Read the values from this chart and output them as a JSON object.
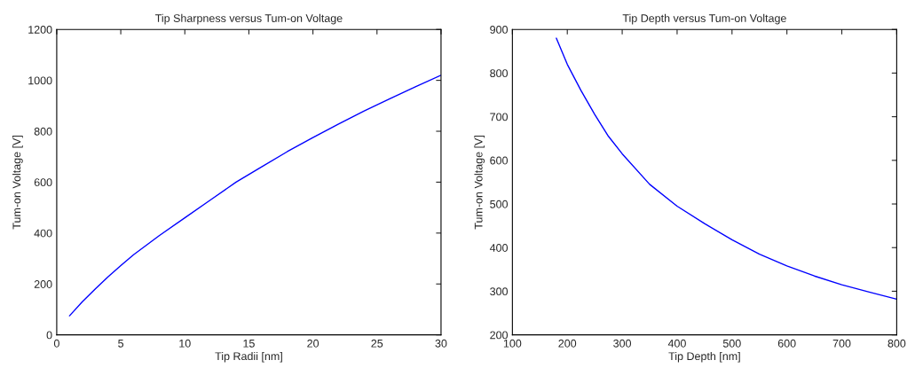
{
  "chart_data": [
    {
      "type": "line",
      "title": "Tip Sharpness versus Tum-on Voltage",
      "xlabel": "Tip Radii [nm]",
      "ylabel": "Tum-on Voltage [V]",
      "x": [
        1,
        2,
        3,
        4,
        5,
        6,
        8,
        10,
        12,
        14,
        16,
        18,
        20,
        22,
        24,
        26,
        28,
        30
      ],
      "series": [
        {
          "color": "#0000ff",
          "values": [
            75,
            130,
            180,
            228,
            272,
            315,
            390,
            460,
            530,
            600,
            660,
            720,
            775,
            828,
            880,
            928,
            975,
            1020
          ]
        }
      ],
      "xlim": [
        0,
        30
      ],
      "xticks": [
        0,
        5,
        10,
        15,
        20,
        25,
        30
      ],
      "ylim": [
        0,
        1200
      ],
      "yticks": [
        0,
        200,
        400,
        600,
        800,
        1000,
        1200
      ],
      "grid": false
    },
    {
      "type": "line",
      "title": "Tip Depth versus Tum-on Voltage",
      "xlabel": "Tip Depth [nm]",
      "ylabel": "Tum-on Voltage [V]",
      "x": [
        180,
        200,
        225,
        250,
        275,
        300,
        350,
        400,
        450,
        500,
        550,
        600,
        650,
        700,
        750,
        800
      ],
      "series": [
        {
          "color": "#0000ff",
          "values": [
            880,
            820,
            760,
            705,
            655,
            615,
            545,
            495,
            455,
            418,
            385,
            358,
            335,
            315,
            298,
            282
          ]
        }
      ],
      "xlim": [
        100,
        800
      ],
      "xticks": [
        100,
        200,
        300,
        400,
        500,
        600,
        700,
        800
      ],
      "ylim": [
        200,
        900
      ],
      "yticks": [
        200,
        300,
        400,
        500,
        600,
        700,
        800,
        900
      ],
      "grid": false
    }
  ]
}
